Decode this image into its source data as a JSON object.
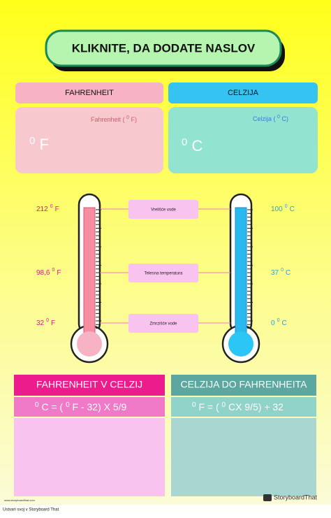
{
  "title": "KLIKNITE, DA DODATE NASLOV",
  "fahrenheit": {
    "header": "FAHRENHEIT",
    "caption": [
      "Fahrenheit (",
      "0",
      "F)"
    ],
    "big": [
      "0",
      "F"
    ]
  },
  "celsius": {
    "header": "CELZIJA",
    "caption": [
      "Celzija (",
      "0",
      "C)"
    ],
    "big": [
      "0",
      "C"
    ]
  },
  "rows": [
    {
      "f": [
        "212",
        "0",
        "F"
      ],
      "label": "Vrelišće vode",
      "c": [
        "100",
        "0",
        "C"
      ]
    },
    {
      "f": [
        "98,6",
        "0",
        "F"
      ],
      "label": "Telesna temperatura",
      "c": [
        "37",
        "0",
        "C"
      ]
    },
    {
      "f": [
        "32",
        "0",
        "F"
      ],
      "label": "Zmrzišće vode",
      "c": [
        "0",
        "0",
        "C"
      ]
    }
  ],
  "conversions": [
    {
      "header": "FAHRENHEIT V CELZIJ",
      "formula": [
        "0",
        "C = (",
        "0",
        "F - 32) X 5/9"
      ]
    },
    {
      "header": "CELZIJA DO FAHRENHEITA",
      "formula": [
        "0",
        "F = (",
        "0",
        "CX 9/5) + 32"
      ]
    }
  ],
  "footer": {
    "url": "www.storyboardthat.com",
    "credit": "Ustvari svoj v Storyboard That",
    "brand": "StoryboardThat"
  }
}
